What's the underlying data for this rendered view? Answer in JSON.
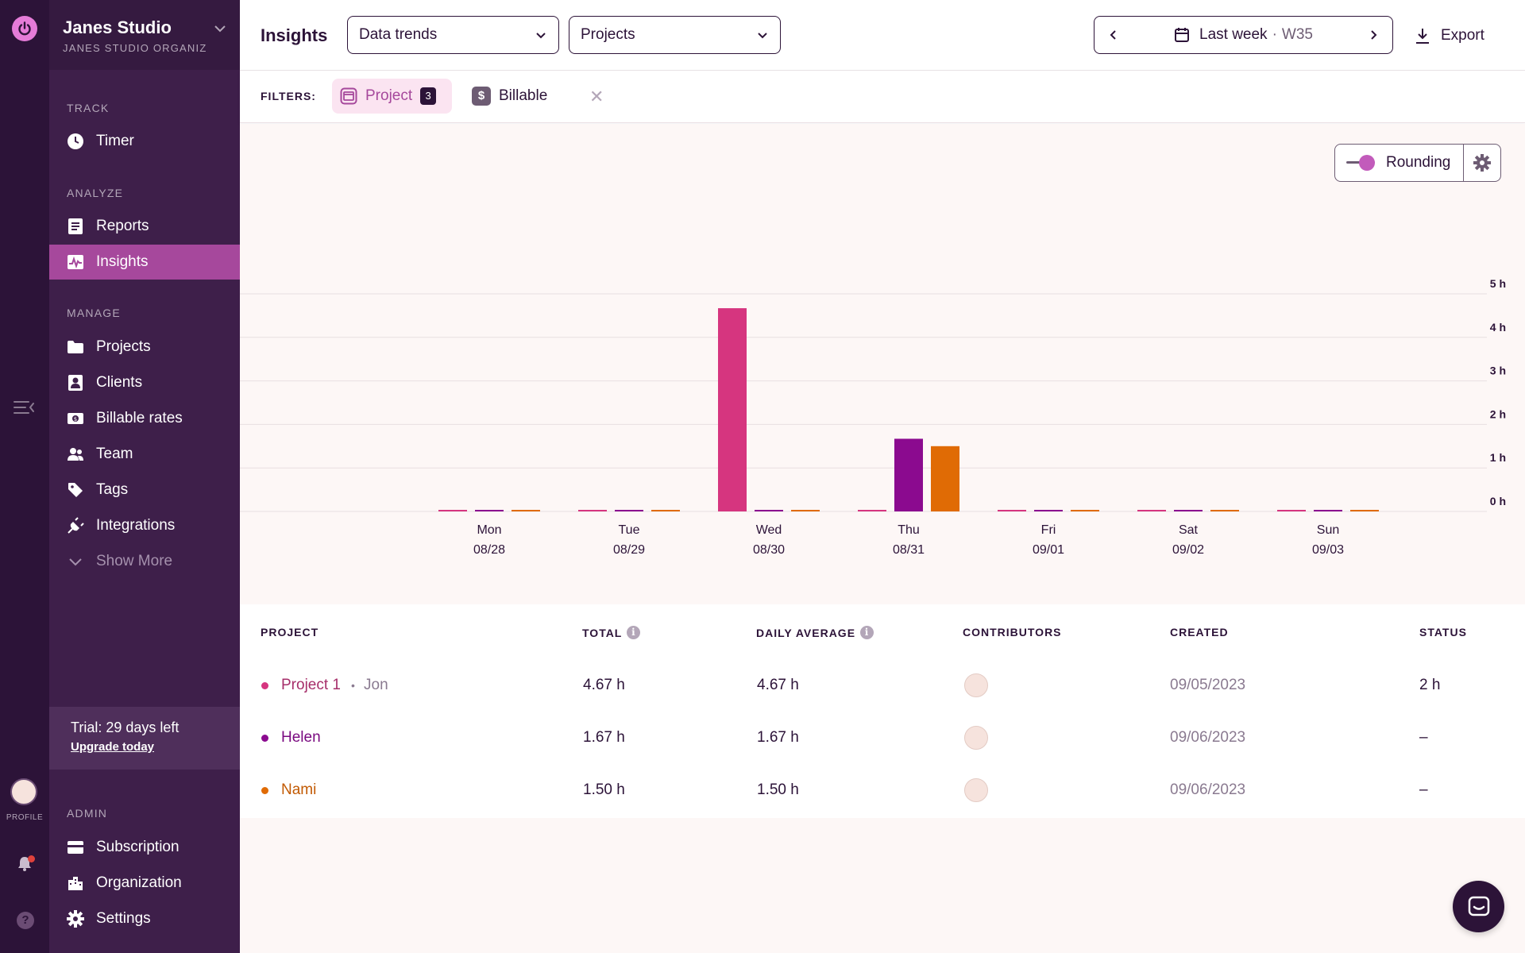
{
  "rail": {
    "profile_label": "PROFILE"
  },
  "workspace": {
    "name": "Janes Studio",
    "org": "JANES STUDIO ORGANIZATION"
  },
  "sidebar": {
    "sections": {
      "track": "TRACK",
      "analyze": "ANALYZE",
      "manage": "MANAGE",
      "admin": "ADMIN"
    },
    "track": [
      {
        "label": "Timer",
        "icon": "clock-icon"
      }
    ],
    "analyze": [
      {
        "label": "Reports",
        "icon": "document-icon"
      },
      {
        "label": "Insights",
        "icon": "insights-icon",
        "active": true
      }
    ],
    "manage": [
      {
        "label": "Projects",
        "icon": "folder-icon"
      },
      {
        "label": "Clients",
        "icon": "contact-icon"
      },
      {
        "label": "Billable rates",
        "icon": "money-icon"
      },
      {
        "label": "Team",
        "icon": "team-icon"
      },
      {
        "label": "Tags",
        "icon": "tag-icon"
      },
      {
        "label": "Integrations",
        "icon": "plug-icon"
      },
      {
        "label": "Show More",
        "icon": "chevron-down-icon"
      }
    ],
    "admin": [
      {
        "label": "Subscription",
        "icon": "card-icon"
      },
      {
        "label": "Organization",
        "icon": "building-icon"
      },
      {
        "label": "Settings",
        "icon": "gear-icon"
      }
    ],
    "trial": {
      "text": "Trial: 29 days left",
      "link": "Upgrade today"
    }
  },
  "header": {
    "title": "Insights",
    "dropdown_view": "Data trends",
    "dropdown_group": "Projects",
    "date_range": "Last week",
    "date_sep": "·",
    "week": "W35",
    "export_label": "Export"
  },
  "filters": {
    "label": "FILTERS:",
    "project_chip": "Project",
    "project_count": "3",
    "billable_chip": "Billable",
    "clear": "✕"
  },
  "rounding": {
    "label": "Rounding"
  },
  "colors": {
    "accent": "#a6489c",
    "project1": "#d6357f",
    "helen": "#8b0a8f",
    "nami": "#e06b05",
    "sidebar": "#3e1f4a"
  },
  "chart_data": {
    "type": "bar",
    "categories": [
      "Mon\n08/28",
      "Tue\n08/29",
      "Wed\n08/30",
      "Thu\n08/31",
      "Fri\n09/01",
      "Sat\n09/02",
      "Sun\n09/03"
    ],
    "category_days": [
      "Mon",
      "Tue",
      "Wed",
      "Thu",
      "Fri",
      "Sat",
      "Sun"
    ],
    "category_dates": [
      "08/28",
      "08/29",
      "08/30",
      "08/31",
      "09/01",
      "09/02",
      "09/03"
    ],
    "series": [
      {
        "name": "Project 1",
        "color": "#d6357f",
        "values": [
          0,
          0,
          4.67,
          0,
          0,
          0,
          0
        ]
      },
      {
        "name": "Helen",
        "color": "#8b0a8f",
        "values": [
          0,
          0,
          0,
          1.67,
          0,
          0,
          0
        ]
      },
      {
        "name": "Nami",
        "color": "#e06b05",
        "values": [
          0,
          0,
          0,
          1.5,
          0,
          0,
          0
        ]
      }
    ],
    "y_ticks": [
      "0 h",
      "1 h",
      "2 h",
      "3 h",
      "4 h",
      "5 h"
    ],
    "ylim": [
      0,
      5
    ],
    "grid": true
  },
  "table": {
    "headers": {
      "project": "PROJECT",
      "total": "TOTAL",
      "daily_average": "DAILY AVERAGE",
      "contributors": "CONTRIBUTORS",
      "created": "CREATED",
      "status": "STATUS"
    },
    "rows": [
      {
        "project": "Project 1",
        "client": "Jon",
        "color": "#d6357f",
        "total": "4.67 h",
        "daily_average": "4.67 h",
        "created": "09/05/2023",
        "status": "2 h"
      },
      {
        "project": "Helen",
        "client": "",
        "color": "#8b0a8f",
        "total": "1.67 h",
        "daily_average": "1.67 h",
        "created": "09/06/2023",
        "status": "–"
      },
      {
        "project": "Nami",
        "client": "",
        "color": "#e06b05",
        "total": "1.50 h",
        "daily_average": "1.50 h",
        "created": "09/06/2023",
        "status": "–"
      }
    ]
  }
}
